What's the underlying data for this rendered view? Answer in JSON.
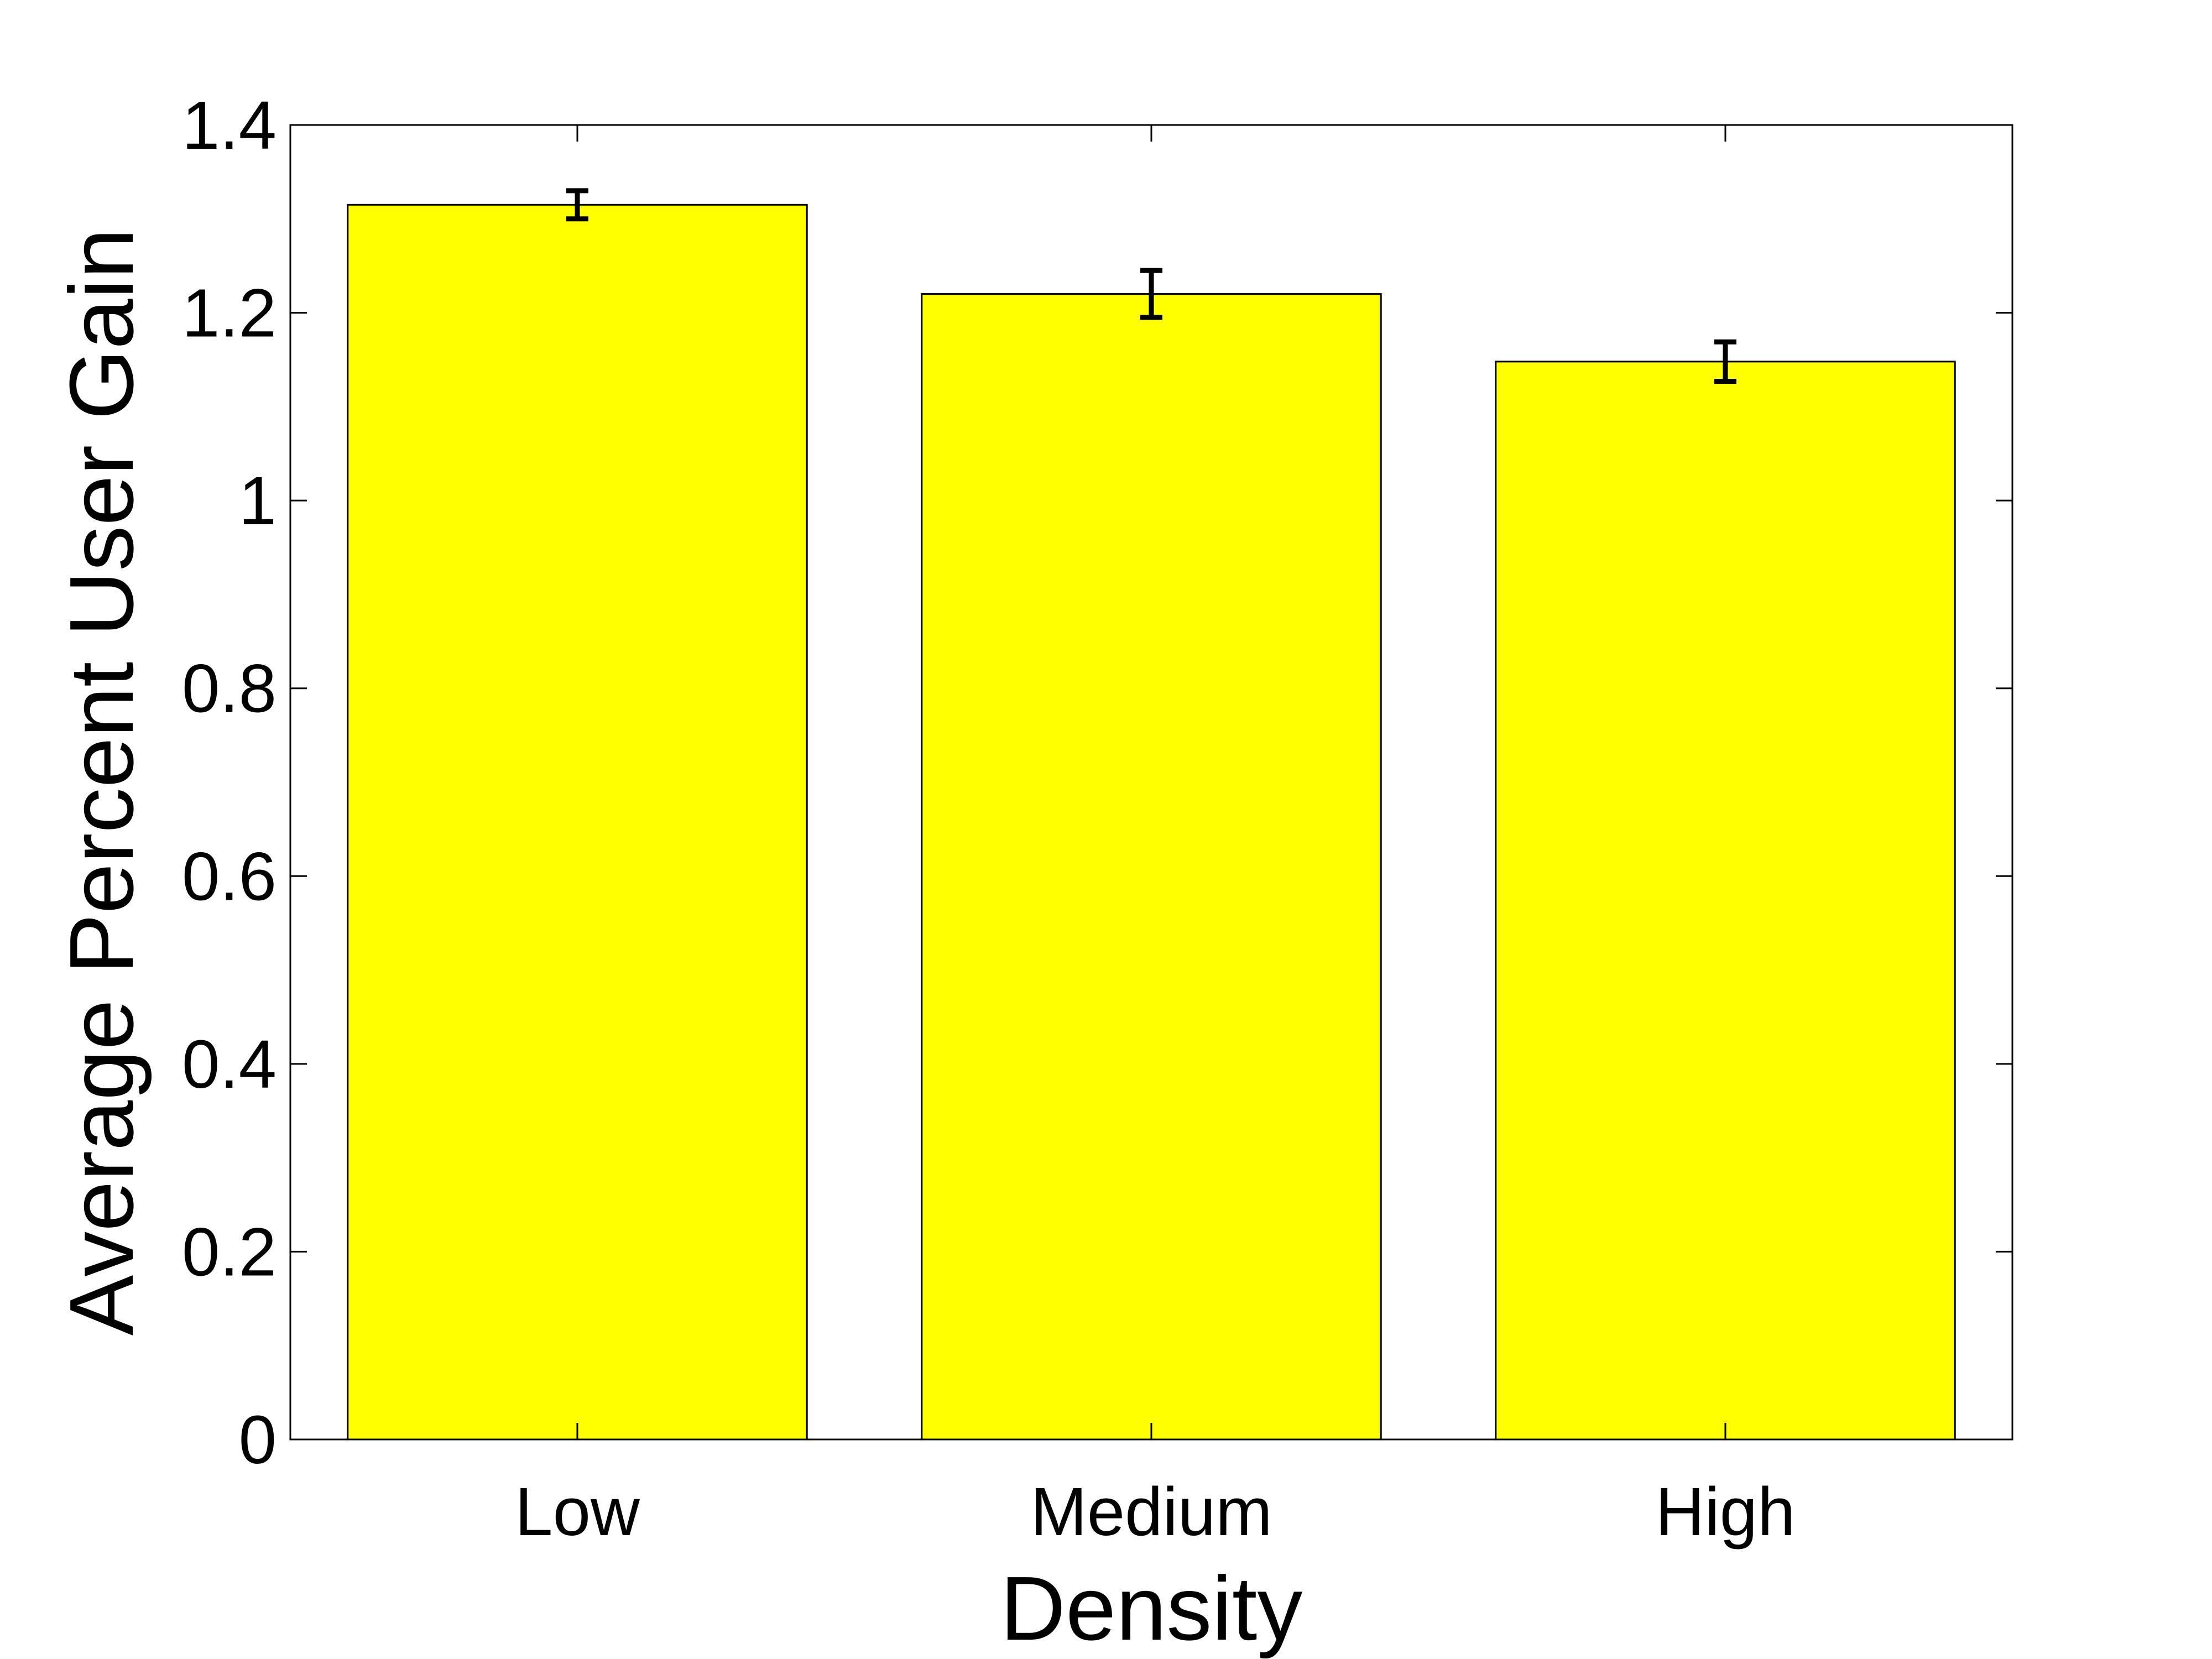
{
  "chart_data": {
    "type": "bar",
    "title": "",
    "xlabel": "Density",
    "ylabel": "Average Percent User Gain",
    "categories": [
      "Low",
      "Medium",
      "High"
    ],
    "values": [
      1.315,
      1.22,
      1.148
    ],
    "error": [
      0.015,
      0.025,
      0.021
    ],
    "ylim": [
      0,
      1.4
    ],
    "yticks": [
      0,
      0.2,
      0.4,
      0.6,
      0.8,
      1,
      1.2,
      1.4
    ],
    "ytick_labels": [
      "0",
      "0.2",
      "0.4",
      "0.6",
      "0.8",
      "1",
      "1.2",
      "1.4"
    ],
    "grid": false,
    "legend": "none",
    "colors": {
      "bar_fill": "#ffff00",
      "bar_edge": "#000000",
      "error_bar": "#000000",
      "axes": "#000000",
      "background": "#ffffff"
    }
  }
}
